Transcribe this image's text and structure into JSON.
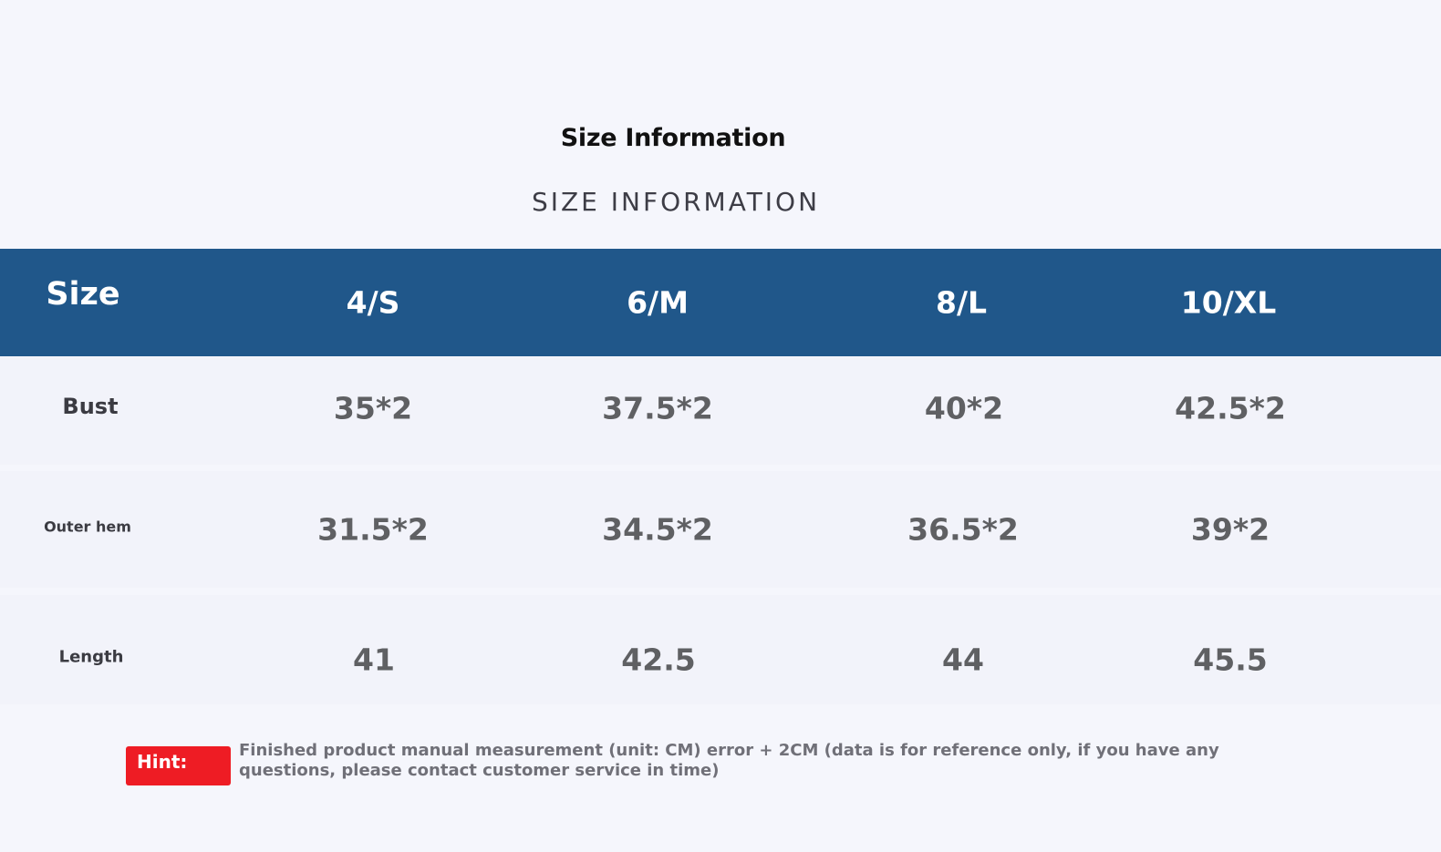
{
  "title": "Size Information",
  "subtitle": "SIZE INFORMATION",
  "table": {
    "header": {
      "label": "Size",
      "sizes": [
        "4/S",
        "6/M",
        "8/L",
        "10/XL"
      ]
    },
    "rows": [
      {
        "label": "Bust",
        "values": [
          "35*2",
          "37.5*2",
          "40*2",
          "42.5*2"
        ]
      },
      {
        "label": "Outer hem",
        "values": [
          "31.5*2",
          "34.5*2",
          "36.5*2",
          "39*2"
        ]
      },
      {
        "label": "Length",
        "values": [
          "41",
          "42.5",
          "44",
          "45.5"
        ]
      }
    ]
  },
  "hint": {
    "label": "Hint:",
    "text": "Finished product manual measurement (unit: CM) error + 2CM (data is for reference only, if you have any questions, please contact customer service in time)"
  },
  "colors": {
    "header_background": "#20578a",
    "hint_background": "#ee1c24",
    "page_background": "#f5f6fc"
  }
}
